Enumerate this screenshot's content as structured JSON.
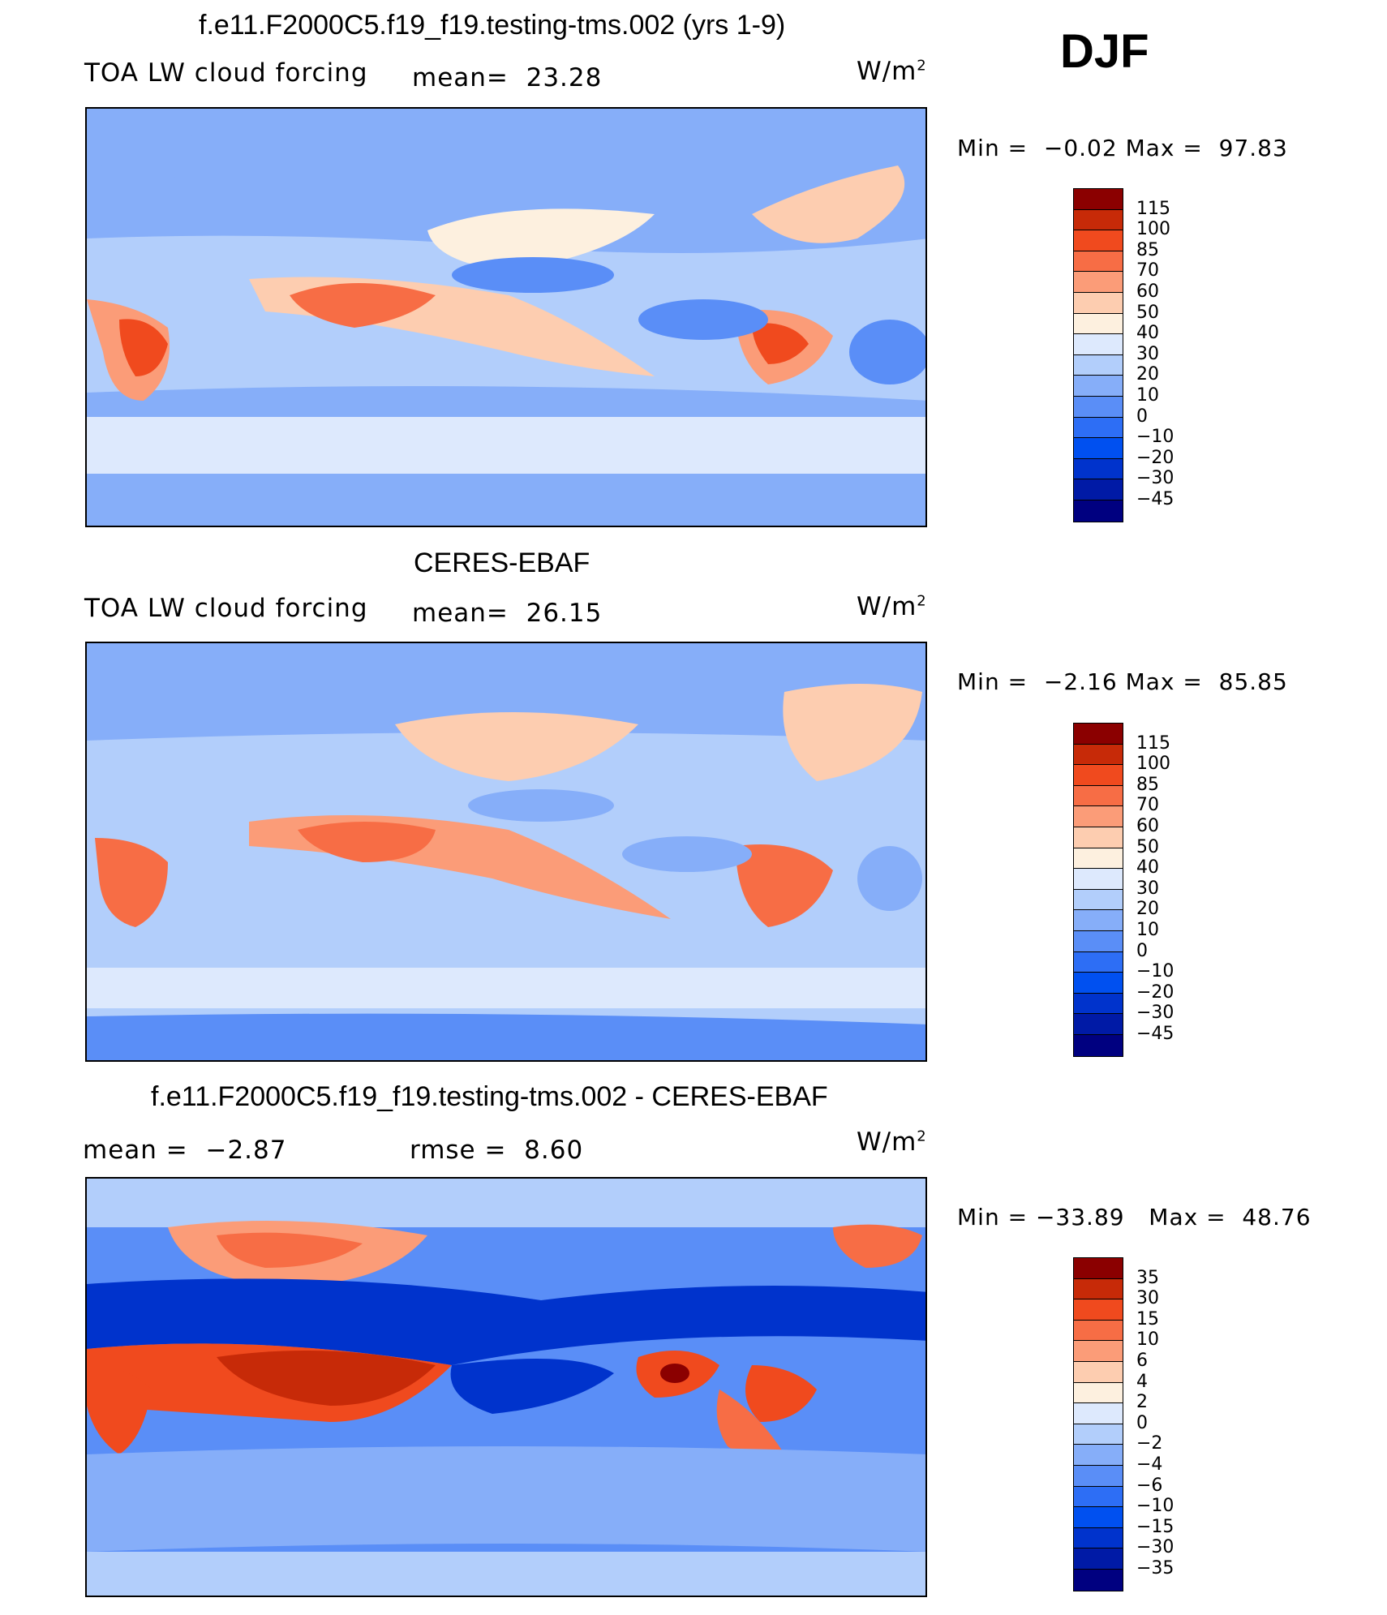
{
  "season": "DJF",
  "panels": [
    {
      "id": "model",
      "title": "f.e11.F2000C5.f19_f19.testing-tms.002 (yrs 1-9)",
      "left_label": "TOA LW cloud forcing",
      "center_label": "mean=",
      "center_value": "23.28",
      "units": "W/m",
      "units_sup": "2",
      "min_label": "Min =",
      "min_value": "−0.02",
      "max_label": "Max =",
      "max_value": "97.83",
      "colorbar_labels": [
        "115",
        "100",
        "85",
        "70",
        "60",
        "50",
        "40",
        "30",
        "20",
        "10",
        "0",
        "−10",
        "−20",
        "−30",
        "−45"
      ]
    },
    {
      "id": "obs",
      "title": "CERES-EBAF",
      "left_label": "TOA LW cloud forcing",
      "center_label": "mean=",
      "center_value": "26.15",
      "units": "W/m",
      "units_sup": "2",
      "min_label": "Min =",
      "min_value": "−2.16",
      "max_label": "Max =",
      "max_value": "85.85",
      "colorbar_labels": [
        "115",
        "100",
        "85",
        "70",
        "60",
        "50",
        "40",
        "30",
        "20",
        "10",
        "0",
        "−10",
        "−20",
        "−30",
        "−45"
      ]
    },
    {
      "id": "diff",
      "title": "f.e11.F2000C5.f19_f19.testing-tms.002 - CERES-EBAF",
      "left_label": "mean =",
      "left_value": "−2.87",
      "center_label": "rmse =",
      "center_value": "8.60",
      "units": "W/m",
      "units_sup": "2",
      "min_label": "Min =",
      "min_value": "−33.89",
      "max_label": "Max =",
      "max_value": "48.76",
      "colorbar_labels": [
        "35",
        "30",
        "15",
        "10",
        "6",
        "4",
        "2",
        "0",
        "−2",
        "−4",
        "−6",
        "−10",
        "−15",
        "−30",
        "−35"
      ]
    }
  ],
  "colors": {
    "seq": [
      "#000080",
      "#001aa6",
      "#0033cc",
      "#0050f0",
      "#2d6ef5",
      "#5a8ef7",
      "#86aef9",
      "#b2cefb",
      "#dde9fd",
      "#fdf0df",
      "#fdcdb0",
      "#fb9c78",
      "#f76d45",
      "#f04a1e",
      "#c72a08",
      "#8b0000"
    ],
    "seq_map": [
      "#000080",
      "#001aa6",
      "#0033cc",
      "#0050f0",
      "#2d6ef5",
      "#5a8ef7",
      "#86aef9",
      "#b2cefb",
      "#dde9fd",
      "#fdf0df",
      "#fdcdb0",
      "#fb9c78",
      "#f76d45",
      "#f04a1e",
      "#c72a08",
      "#8b0000"
    ],
    "diff": [
      "#000080",
      "#001aa6",
      "#0033cc",
      "#0050f0",
      "#2d6ef5",
      "#5a8ef7",
      "#86aef9",
      "#b2cefb",
      "#dde9fd",
      "#fdf0df",
      "#fdcdb0",
      "#fb9c78",
      "#f76d45",
      "#f04a1e",
      "#c72a08",
      "#8b0000"
    ]
  }
}
